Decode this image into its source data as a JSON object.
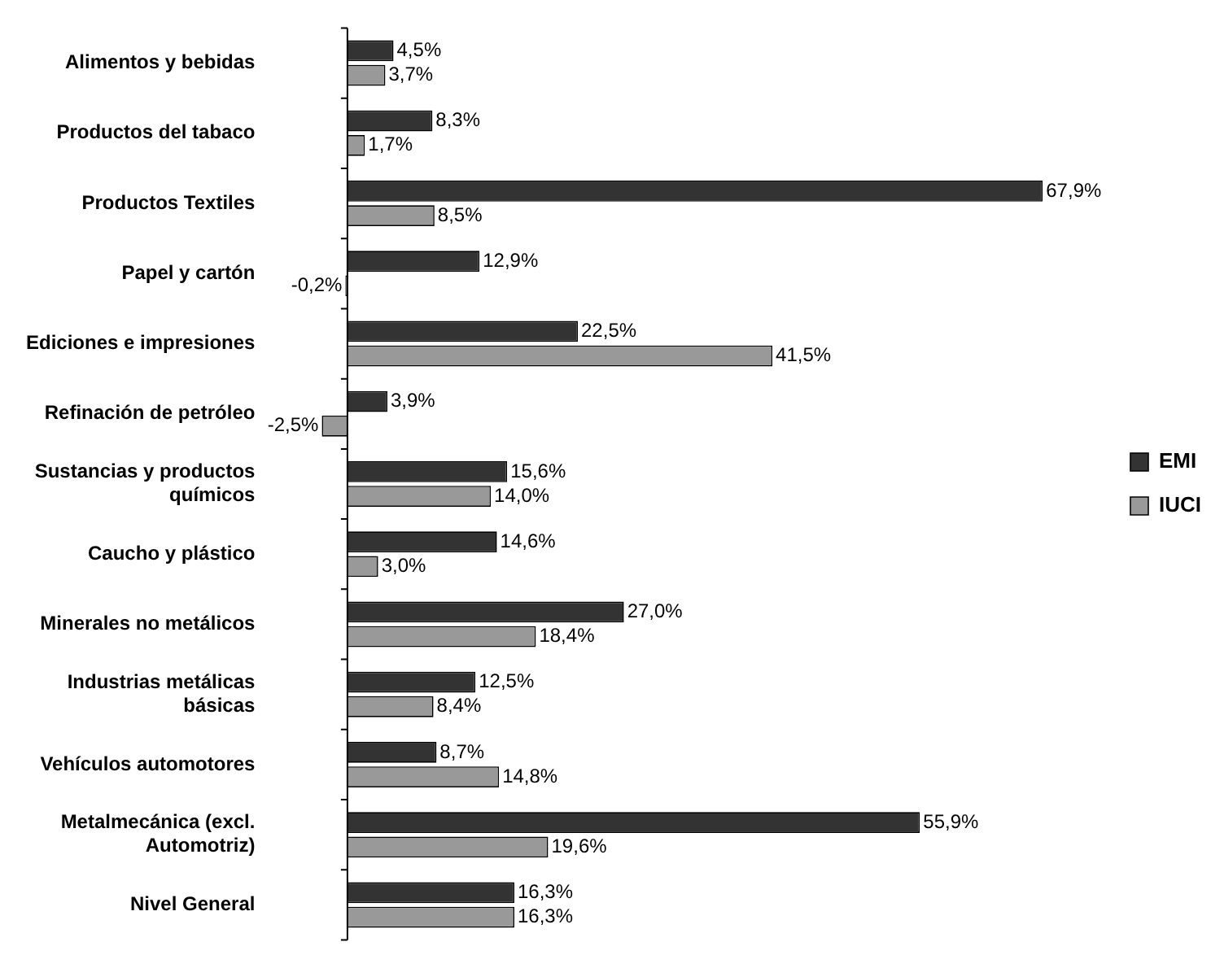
{
  "chart_data": {
    "type": "bar",
    "orientation": "horizontal",
    "tick_labels": "y",
    "legend": "right",
    "data_labels": true,
    "categories": [
      "Alimentos y bebidas",
      "Productos del tabaco",
      "Productos Textiles",
      "Papel y cartón",
      "Ediciones e impresiones",
      "Refinación de petróleo",
      "Sustancias y productos químicos",
      "Caucho y plástico",
      "Minerales no metálicos",
      "Industrias metálicas básicas",
      "Vehículos automotores",
      "Metalmecánica (excl. Automotriz)",
      "Nivel General"
    ],
    "series": [
      {
        "name": "EMI",
        "color": "#333333",
        "values": [
          4.5,
          8.3,
          67.9,
          12.9,
          22.5,
          3.9,
          15.6,
          14.6,
          27.0,
          12.5,
          8.7,
          55.9,
          16.3
        ],
        "value_labels": [
          "4,5%",
          "8,3%",
          "67,9%",
          "12,9%",
          "22,5%",
          "3,9%",
          "15,6%",
          "14,6%",
          "27,0%",
          "12,5%",
          "8,7%",
          "55,9%",
          "16,3%"
        ]
      },
      {
        "name": "IUCI",
        "color": "#999999",
        "values": [
          3.7,
          1.7,
          8.5,
          -0.2,
          41.5,
          -2.5,
          14.0,
          3.0,
          18.4,
          8.4,
          14.8,
          19.6,
          16.3
        ],
        "value_labels": [
          "3,7%",
          "1,7%",
          "8,5%",
          "-0,2%",
          "41,5%",
          "-2,5%",
          "14,0%",
          "3,0%",
          "18,4%",
          "8,4%",
          "14,8%",
          "19,6%",
          "16,3%"
        ]
      }
    ]
  }
}
